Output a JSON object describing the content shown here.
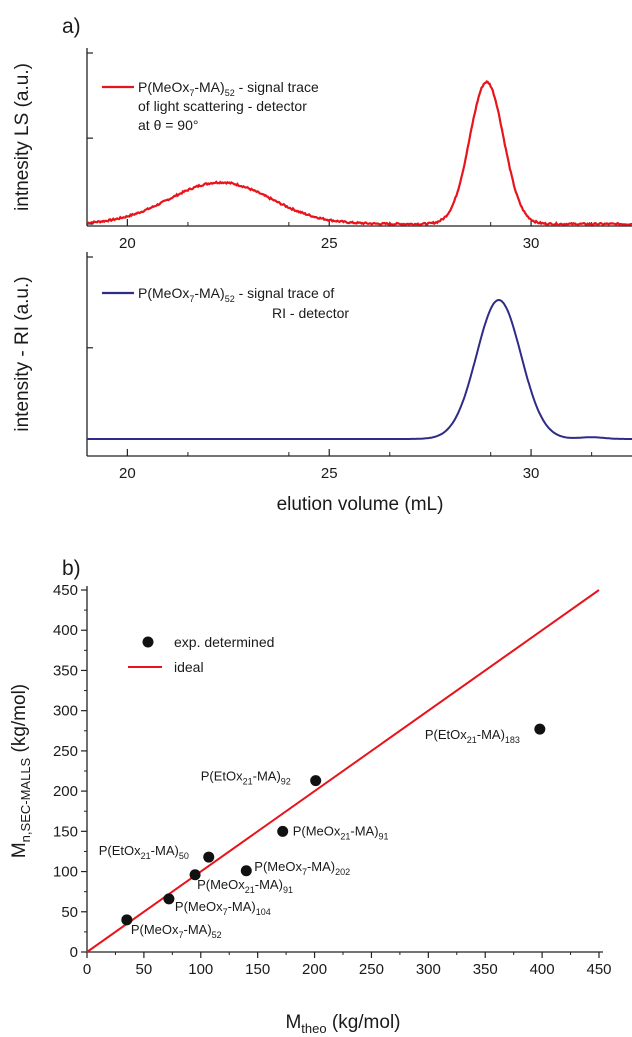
{
  "chart_data": [
    {
      "panel": "a)",
      "type": "line",
      "ylabel": "intnesity LS (a.u.)",
      "xlabel": "",
      "xlim": [
        19,
        32.5
      ],
      "ylim": [
        0,
        1.05
      ],
      "xticks": [
        20,
        25,
        30
      ],
      "legend": {
        "placement": "top-left",
        "entries": [
          {
            "text_main": "P(MeOx",
            "sub1": "7",
            "text_mid": "-MA)",
            "sub2": "52",
            "text_tail": " - signal trace",
            "line2": "of light scattering - detector",
            "line3": "at θ = 90°"
          }
        ]
      },
      "series": [
        {
          "color": "#e8141c",
          "peaks": [
            {
              "center": 22.3,
              "height": 0.27,
              "width": 1.25
            },
            {
              "center": 28.9,
              "height": 0.92,
              "width": 0.42
            }
          ],
          "baseline": 0.02,
          "noise": 0.006
        }
      ]
    },
    {
      "panel": "",
      "type": "line",
      "ylabel": "intensity - RI (a.u.)",
      "xlabel": "elution volume (mL)",
      "xlim": [
        19,
        32.5
      ],
      "ylim": [
        0,
        1.05
      ],
      "xticks": [
        20,
        25,
        30
      ],
      "legend": {
        "placement": "top-left",
        "entries": [
          {
            "text_main": "P(MeOx",
            "sub1": "7",
            "text_mid": "-MA)",
            "sub2": "52",
            "text_tail": " - signal trace of",
            "line2": "RI - detector"
          }
        ]
      },
      "series": [
        {
          "color": "#2e2c86",
          "peaks": [
            {
              "center": 29.2,
              "height": 0.94,
              "width": 0.55
            },
            {
              "center": 31.5,
              "height": 0.012,
              "width": 0.3
            }
          ],
          "baseline": 0.02,
          "noise": 0.0
        }
      ]
    },
    {
      "panel": "b)",
      "type": "scatter",
      "xlabel": {
        "main": "M",
        "sub": "theo",
        "tail": " (kg/mol)"
      },
      "ylabel": {
        "main": "M",
        "sub": "n,SEC-MALLS",
        "tail": " (kg/mol)"
      },
      "xlim": [
        0,
        450
      ],
      "ylim": [
        0,
        450
      ],
      "xticks": [
        0,
        50,
        100,
        150,
        200,
        250,
        300,
        350,
        400,
        450
      ],
      "yticks": [
        0,
        50,
        100,
        150,
        200,
        250,
        300,
        350,
        400,
        450
      ],
      "legend": {
        "placement": "top-left",
        "entries": [
          {
            "label": "exp. determined",
            "marker": "dot"
          },
          {
            "label": "ideal",
            "marker": "line",
            "color": "#e8141c"
          }
        ]
      },
      "ideal_line": {
        "x": [
          0,
          450
        ],
        "y": [
          0,
          450
        ],
        "color": "#e8141c"
      },
      "points": [
        {
          "x": 35,
          "y": 40,
          "label": {
            "main": "P(MeOx",
            "s1": "7",
            "mid": "-MA)",
            "s2": "52"
          }
        },
        {
          "x": 72,
          "y": 66,
          "label": {
            "main": "P(MeOx",
            "s1": "7",
            "mid": "-MA)",
            "s2": "104"
          }
        },
        {
          "x": 95,
          "y": 96,
          "label": {
            "main": "P(MeOx",
            "s1": "21",
            "mid": "-MA)",
            "s2": "91"
          }
        },
        {
          "x": 107,
          "y": 118,
          "label": {
            "main": "P(EtOx",
            "s1": "21",
            "mid": "-MA)",
            "s2": "50"
          }
        },
        {
          "x": 140,
          "y": 101,
          "label": {
            "main": "P(MeOx",
            "s1": "7",
            "mid": "-MA)",
            "s2": "202"
          }
        },
        {
          "x": 172,
          "y": 150,
          "label": {
            "main": "P(MeOx",
            "s1": "21",
            "mid": "-MA)",
            "s2": "91"
          }
        },
        {
          "x": 201,
          "y": 213,
          "label": {
            "main": "P(EtOx",
            "s1": "21",
            "mid": "-MA)",
            "s2": "92"
          }
        },
        {
          "x": 398,
          "y": 277,
          "label": {
            "main": "P(EtOx",
            "s1": "21",
            "mid": "-MA)",
            "s2": "183"
          }
        }
      ]
    }
  ]
}
